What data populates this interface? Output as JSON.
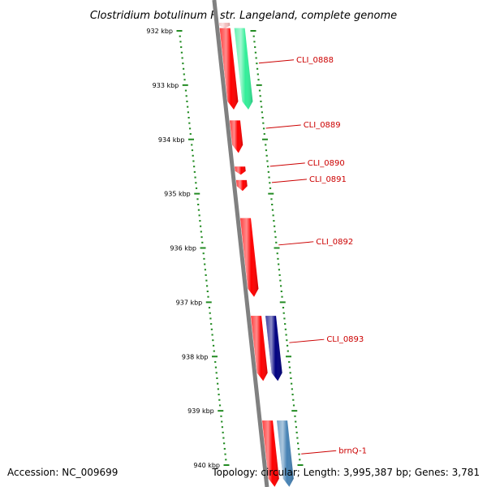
{
  "header": {
    "title": "Clostridium botulinum F str. Langeland, complete genome"
  },
  "footer": {
    "accession": "Accession: NC_009699",
    "summary": "Topology: circular; Length: 3,995,387 bp; Genes: 3,781"
  },
  "colors": {
    "backbone": "#808080",
    "tick": "#228b22",
    "label": "#cc0000",
    "leader": "#cc0000",
    "gene_red": "#ff0000",
    "gene_green": "#33ee99",
    "gene_navy": "#000080",
    "gene_steelblue": "#4682b4",
    "gene_faded": "#f4bcbc"
  },
  "kbp_ticks": [
    {
      "label": "932 kbp",
      "kbp": 932
    },
    {
      "label": "933 kbp",
      "kbp": 933
    },
    {
      "label": "934 kbp",
      "kbp": 934
    },
    {
      "label": "935 kbp",
      "kbp": 935
    },
    {
      "label": "936 kbp",
      "kbp": 936
    },
    {
      "label": "937 kbp",
      "kbp": 937
    },
    {
      "label": "938 kbp",
      "kbp": 938
    },
    {
      "label": "939 kbp",
      "kbp": 939
    },
    {
      "label": "940 kbp",
      "kbp": 940
    }
  ],
  "genes": [
    {
      "id": "faded-top",
      "start_kbp": 931.85,
      "end_kbp": 931.95,
      "track": 0,
      "color_key": "gene_faded",
      "direction": "down",
      "label": ""
    },
    {
      "id": "CLI_0888-red",
      "start_kbp": 931.95,
      "end_kbp": 933.45,
      "track": 0,
      "color_key": "gene_red",
      "direction": "down",
      "label": ""
    },
    {
      "id": "CLI_0888-green",
      "start_kbp": 931.95,
      "end_kbp": 933.45,
      "track": 1,
      "color_key": "gene_green",
      "direction": "down",
      "label": "CLI_0888"
    },
    {
      "id": "CLI_0889",
      "start_kbp": 933.65,
      "end_kbp": 934.25,
      "track": 0,
      "color_key": "gene_red",
      "direction": "down",
      "label": "CLI_0889"
    },
    {
      "id": "CLI_0890",
      "start_kbp": 934.5,
      "end_kbp": 934.65,
      "track": 0,
      "color_key": "gene_red",
      "direction": "down",
      "label": "CLI_0890"
    },
    {
      "id": "CLI_0891",
      "start_kbp": 934.75,
      "end_kbp": 934.95,
      "track": 0,
      "color_key": "gene_red",
      "direction": "down",
      "label": "CLI_0891"
    },
    {
      "id": "CLI_0892",
      "start_kbp": 935.45,
      "end_kbp": 936.9,
      "track": 0,
      "color_key": "gene_red",
      "direction": "down",
      "label": "CLI_0892"
    },
    {
      "id": "CLI_0893-red",
      "start_kbp": 937.25,
      "end_kbp": 938.45,
      "track": 0,
      "color_key": "gene_red",
      "direction": "down",
      "label": ""
    },
    {
      "id": "CLI_0893-navy",
      "start_kbp": 937.25,
      "end_kbp": 938.45,
      "track": 1,
      "color_key": "gene_navy",
      "direction": "down",
      "label": "CLI_0893"
    },
    {
      "id": "brnQ-1-red",
      "start_kbp": 939.18,
      "end_kbp": 940.4,
      "track": 0,
      "color_key": "gene_red",
      "direction": "down",
      "label": ""
    },
    {
      "id": "brnQ-1-blue",
      "start_kbp": 939.18,
      "end_kbp": 940.4,
      "track": 1,
      "color_key": "gene_steelblue",
      "direction": "down",
      "label": "brnQ-1"
    }
  ],
  "gene_labels": [
    {
      "text": "CLI_0888",
      "kbp": 932.55
    },
    {
      "text": "CLI_0889",
      "kbp": 933.75
    },
    {
      "text": "CLI_0890",
      "kbp": 934.45
    },
    {
      "text": "CLI_0891",
      "kbp": 934.75
    },
    {
      "text": "CLI_0892",
      "kbp": 935.9
    },
    {
      "text": "CLI_0893",
      "kbp": 937.7
    },
    {
      "text": "brnQ-1",
      "kbp": 939.75
    }
  ]
}
